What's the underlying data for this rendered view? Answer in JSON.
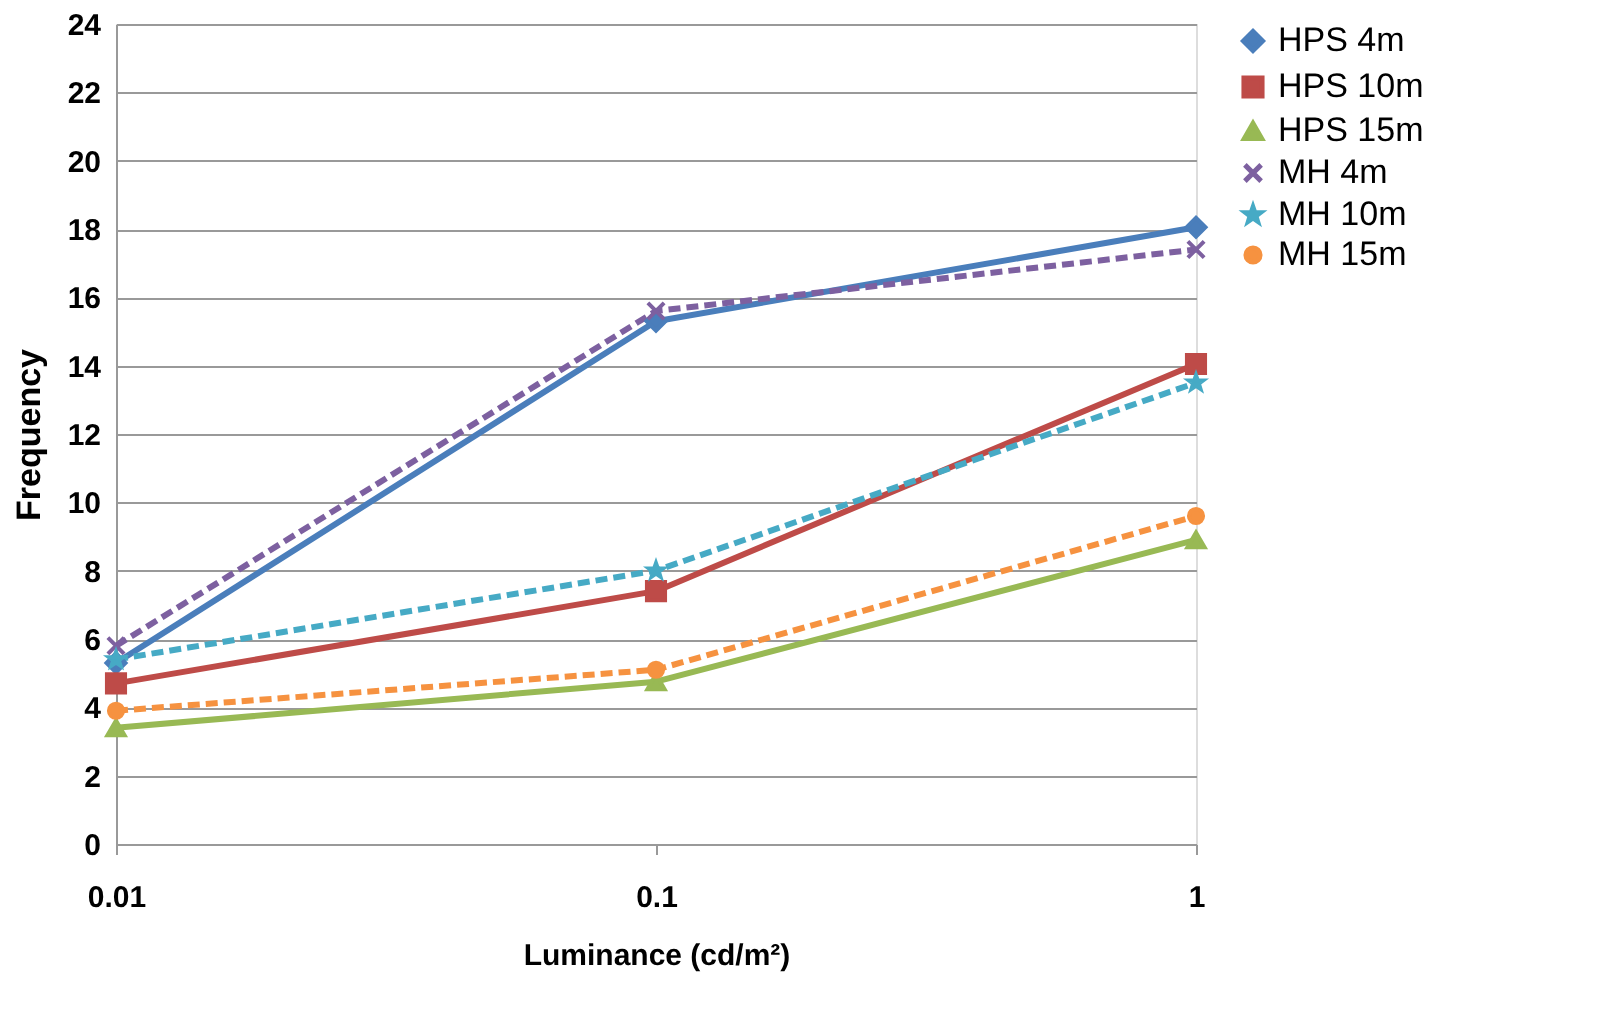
{
  "chart_data": {
    "type": "line",
    "xlabel": "Luminance (cd/m²)",
    "ylabel": "Frequency",
    "x": [
      0.01,
      0.1,
      1
    ],
    "log": "x",
    "xlim": [
      0.01,
      1
    ],
    "xticks": [
      0.01,
      0.1,
      1
    ],
    "ylim": [
      0,
      24
    ],
    "yticks": [
      0,
      2,
      4,
      6,
      8,
      10,
      12,
      14,
      16,
      18,
      20,
      22,
      24
    ],
    "grid": "y",
    "legend": "right",
    "series": [
      {
        "name": "HPS 4m",
        "color": "#4a7ebb",
        "marker": "diamond",
        "line_style": "solid",
        "values": [
          5.3,
          15.3,
          18.05
        ]
      },
      {
        "name": "HPS 10m",
        "color": "#be4b48",
        "marker": "square",
        "line_style": "solid",
        "values": [
          4.7,
          7.4,
          14.05
        ]
      },
      {
        "name": "HPS 15m",
        "color": "#98b954",
        "marker": "triangle",
        "line_style": "solid",
        "values": [
          3.4,
          4.75,
          8.9
        ]
      },
      {
        "name": "MH 4m",
        "color": "#7d60a0",
        "marker": "cross",
        "line_style": "dashed",
        "values": [
          5.8,
          15.6,
          17.4
        ]
      },
      {
        "name": "MH 10m",
        "color": "#46aac5",
        "marker": "star",
        "line_style": "dashed",
        "values": [
          5.4,
          8.0,
          13.5
        ]
      },
      {
        "name": "MH 15m",
        "color": "#f69240",
        "marker": "circle",
        "line_style": "dashed",
        "values": [
          3.9,
          5.1,
          9.6
        ]
      }
    ]
  }
}
